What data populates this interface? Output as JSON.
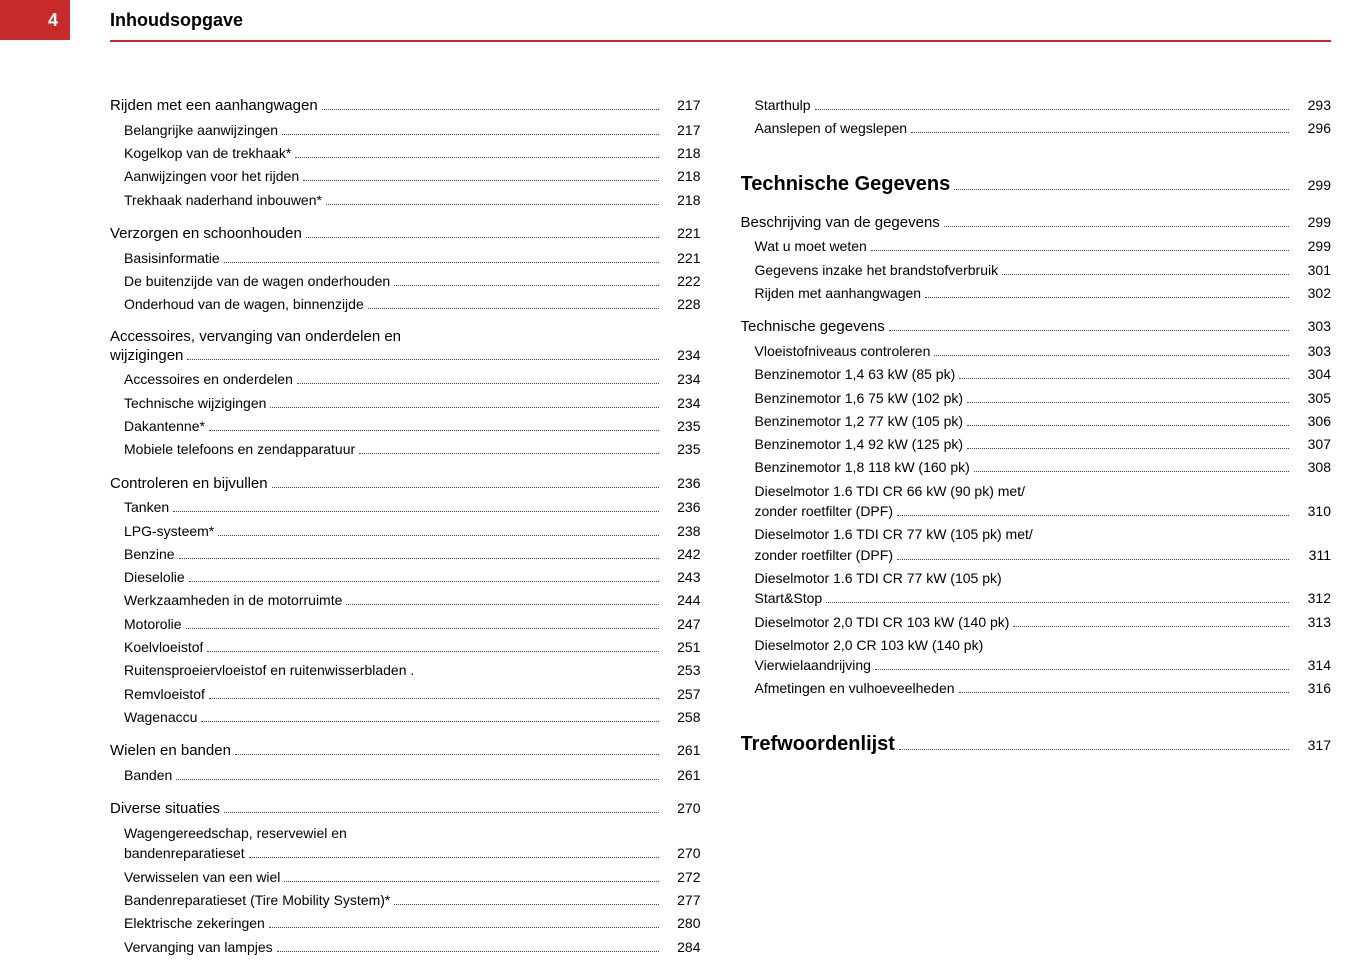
{
  "header": {
    "pageNumber": "4",
    "title": "Inhoudsopgave"
  },
  "columns": {
    "left": [
      {
        "type": "row",
        "level": "head",
        "label": "Rijden met een aanhangwagen",
        "page": "217"
      },
      {
        "type": "row",
        "level": "sub",
        "label": "Belangrijke aanwijzingen",
        "page": "217"
      },
      {
        "type": "row",
        "level": "sub",
        "label": "Kogelkop van de trekhaak*",
        "page": "218"
      },
      {
        "type": "row",
        "level": "sub",
        "label": "Aanwijzingen voor het rijden",
        "page": "218"
      },
      {
        "type": "row",
        "level": "sub",
        "label": "Trekhaak naderhand inbouwen*",
        "page": "218"
      },
      {
        "type": "gap"
      },
      {
        "type": "row",
        "level": "head",
        "label": "Verzorgen en schoonhouden",
        "page": "221"
      },
      {
        "type": "row",
        "level": "sub",
        "label": "Basisinformatie",
        "page": "221"
      },
      {
        "type": "row",
        "level": "sub",
        "label": "De buitenzijde van de wagen onderhouden",
        "page": "222"
      },
      {
        "type": "row",
        "level": "sub",
        "label": "Onderhoud van de wagen, binnenzijde",
        "page": "228"
      },
      {
        "type": "gap"
      },
      {
        "type": "text",
        "level": "head",
        "label": "Accessoires, vervanging van onderdelen en"
      },
      {
        "type": "row",
        "level": "head",
        "label": "wijzigingen",
        "page": "234"
      },
      {
        "type": "row",
        "level": "sub",
        "label": "Accessoires en onderdelen",
        "page": "234"
      },
      {
        "type": "row",
        "level": "sub",
        "label": "Technische wijzigingen",
        "page": "234"
      },
      {
        "type": "row",
        "level": "sub",
        "label": "Dakantenne*",
        "page": "235"
      },
      {
        "type": "row",
        "level": "sub",
        "label": "Mobiele telefoons en zendapparatuur",
        "page": "235"
      },
      {
        "type": "gap"
      },
      {
        "type": "row",
        "level": "head",
        "label": "Controleren en bijvullen",
        "page": "236"
      },
      {
        "type": "row",
        "level": "sub",
        "label": "Tanken",
        "page": "236"
      },
      {
        "type": "row",
        "level": "sub",
        "label": "LPG-systeem*",
        "page": "238"
      },
      {
        "type": "row",
        "level": "sub",
        "label": "Benzine",
        "page": "242"
      },
      {
        "type": "row",
        "level": "sub",
        "label": "Dieselolie",
        "page": "243"
      },
      {
        "type": "row",
        "level": "sub",
        "label": "Werkzaamheden in de motorruimte",
        "page": "244"
      },
      {
        "type": "row",
        "level": "sub",
        "label": "Motorolie",
        "page": "247"
      },
      {
        "type": "row",
        "level": "sub",
        "label": "Koelvloeistof",
        "page": "251"
      },
      {
        "type": "row",
        "level": "sub",
        "label": "Ruitensproeiervloeistof en ruitenwisserbladen  .",
        "page": "253",
        "nodots": true
      },
      {
        "type": "row",
        "level": "sub",
        "label": "Remvloeistof",
        "page": "257"
      },
      {
        "type": "row",
        "level": "sub",
        "label": "Wagenaccu",
        "page": "258"
      },
      {
        "type": "gap"
      },
      {
        "type": "row",
        "level": "head",
        "label": "Wielen en banden",
        "page": "261"
      },
      {
        "type": "row",
        "level": "sub",
        "label": "Banden",
        "page": "261"
      },
      {
        "type": "gap"
      },
      {
        "type": "row",
        "level": "head",
        "label": "Diverse situaties",
        "page": "270"
      },
      {
        "type": "text",
        "level": "sub",
        "label": "Wagengereedschap, reservewiel en"
      },
      {
        "type": "row",
        "level": "sub",
        "label": "bandenreparatieset",
        "page": "270"
      },
      {
        "type": "row",
        "level": "sub",
        "label": "Verwisselen van een wiel",
        "page": "272"
      },
      {
        "type": "row",
        "level": "sub",
        "label": "Bandenreparatieset (Tire Mobility System)*",
        "page": "277"
      },
      {
        "type": "row",
        "level": "sub",
        "label": "Elektrische zekeringen",
        "page": "280"
      },
      {
        "type": "row",
        "level": "sub",
        "label": "Vervanging van lampjes",
        "page": "284"
      }
    ],
    "right": [
      {
        "type": "row",
        "level": "sub",
        "label": "Starthulp",
        "page": "293"
      },
      {
        "type": "row",
        "level": "sub",
        "label": "Aanslepen of wegslepen",
        "page": "296"
      },
      {
        "type": "biggap"
      },
      {
        "type": "row",
        "level": "chapter",
        "label": "Technische Gegevens",
        "page": "299"
      },
      {
        "type": "gap"
      },
      {
        "type": "row",
        "level": "head",
        "label": "Beschrijving van de gegevens",
        "page": "299"
      },
      {
        "type": "row",
        "level": "sub",
        "label": "Wat u moet weten",
        "page": "299"
      },
      {
        "type": "row",
        "level": "sub",
        "label": "Gegevens inzake het brandstofverbruik",
        "page": "301"
      },
      {
        "type": "row",
        "level": "sub",
        "label": "Rijden met aanhangwagen",
        "page": "302"
      },
      {
        "type": "gap"
      },
      {
        "type": "row",
        "level": "head",
        "label": "Technische gegevens",
        "page": "303"
      },
      {
        "type": "row",
        "level": "sub",
        "label": "Vloeistofniveaus controleren",
        "page": "303"
      },
      {
        "type": "row",
        "level": "sub",
        "label": "Benzinemotor 1,4 63 kW (85 pk)",
        "page": "304"
      },
      {
        "type": "row",
        "level": "sub",
        "label": "Benzinemotor 1,6 75 kW (102 pk)",
        "page": "305"
      },
      {
        "type": "row",
        "level": "sub",
        "label": "Benzinemotor 1,2 77 kW (105 pk)",
        "page": "306"
      },
      {
        "type": "row",
        "level": "sub",
        "label": "Benzinemotor 1,4 92 kW (125 pk)",
        "page": "307"
      },
      {
        "type": "row",
        "level": "sub",
        "label": "Benzinemotor 1,8 118 kW (160 pk)",
        "page": "308"
      },
      {
        "type": "text",
        "level": "sub",
        "label": "Dieselmotor 1.6 TDI CR 66 kW (90 pk) met/"
      },
      {
        "type": "row",
        "level": "sub",
        "label": "zonder roetfilter (DPF)",
        "page": "310"
      },
      {
        "type": "text",
        "level": "sub",
        "label": "Dieselmotor 1.6 TDI CR 77 kW (105 pk) met/"
      },
      {
        "type": "row",
        "level": "sub",
        "label": "zonder roetfilter (DPF)",
        "page": "311"
      },
      {
        "type": "text",
        "level": "sub",
        "label": "Dieselmotor 1.6 TDI CR 77 kW (105 pk)"
      },
      {
        "type": "row",
        "level": "sub",
        "label": "Start&Stop",
        "page": "312"
      },
      {
        "type": "row",
        "level": "sub",
        "label": "Dieselmotor 2,0 TDI CR 103 kW (140 pk)",
        "page": "313"
      },
      {
        "type": "text",
        "level": "sub",
        "label": "Dieselmotor 2,0 CR 103 kW (140 pk)"
      },
      {
        "type": "row",
        "level": "sub",
        "label": "Vierwielaandrijving",
        "page": "314"
      },
      {
        "type": "row",
        "level": "sub",
        "label": "Afmetingen en vulhoeveelheden",
        "page": "316"
      },
      {
        "type": "biggap"
      },
      {
        "type": "row",
        "level": "chapter",
        "label": "Trefwoordenlijst",
        "page": "317"
      }
    ]
  }
}
